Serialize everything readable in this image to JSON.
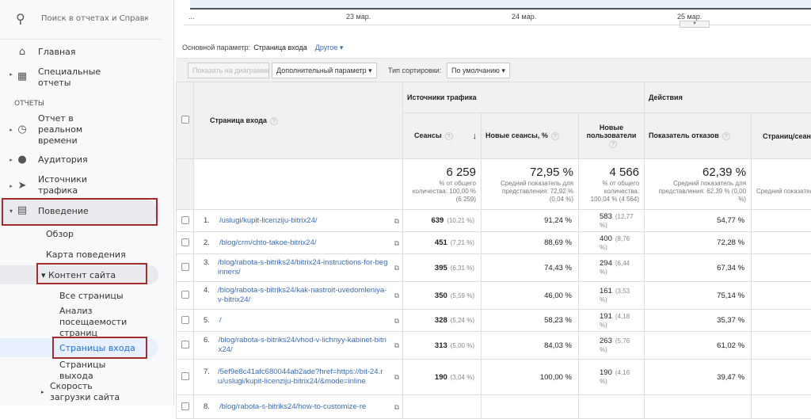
{
  "sidebar": {
    "search_placeholder": "Поиск в отчетах и Справке",
    "home": "Главная",
    "custom": "Специальные отчеты",
    "section": "ОТЧЕТЫ",
    "realtime": "Отчет в реальном времени",
    "audience": "Аудитория",
    "acquisition": "Источники трафика",
    "behavior": "Поведение",
    "overview": "Обзор",
    "flow": "Карта поведения",
    "content": "Контент сайта",
    "all_pages": "Все страницы",
    "drilldown": "Анализ посещаемости страниц",
    "landing": "Страницы входа",
    "exit": "Страницы выхода",
    "speed": "Скорость загрузки сайта"
  },
  "chart": {
    "ticks": [
      "...",
      "23 мар.",
      "24 мар.",
      "25 мар."
    ]
  },
  "dimension": {
    "label": "Основной параметр:",
    "value": "Страница входа",
    "other": "Другое ▾"
  },
  "toolbar": {
    "plot": "Показать на диаграмме",
    "secondary": "Дополнительный параметр ▾",
    "sort_label": "Тип сортировки:",
    "sort": "По умолчанию ▾"
  },
  "table": {
    "groups": {
      "acq": "Источники трафика",
      "beh": "Действия"
    },
    "headers": {
      "page": "Страница входа",
      "sessions": "Сеансы",
      "new_sessions": "Новые сеансы, %",
      "new_users": "Новые пользователи",
      "bounce": "Показатель отказов",
      "pps": "Страниц/сеанс"
    },
    "totals": {
      "sessions": "6 259",
      "sessions_sub": "% от общего количества: 100,00 % (6 259)",
      "new_sessions": "72,95 %",
      "new_sessions_sub": "Средний показатель для представления: 72,92 % (0,04 %)",
      "new_users": "4 566",
      "new_users_sub": "% от общего количества: 100,04 % (4 564)",
      "bounce": "62,39 %",
      "bounce_sub": "Средний показатель для представления: 62,39 % (0,00 %)",
      "pps_sub": "Средний показатель для представления"
    },
    "rows": [
      {
        "n": "1.",
        "page": "/uslugi/kupit-licenziju-bitrix24/",
        "sessions": "639",
        "sessions_pct": "(10,21 %)",
        "new_sessions": "91,24 %",
        "new_users": "583",
        "new_users_pct": "(12,77 %)",
        "bounce": "54,77 %"
      },
      {
        "n": "2.",
        "page": "/blog/crm/chto-takoe-bitrix24/",
        "sessions": "451",
        "sessions_pct": "(7,21 %)",
        "new_sessions": "88,69 %",
        "new_users": "400",
        "new_users_pct": "(8,76 %)",
        "bounce": "72,28 %"
      },
      {
        "n": "3.",
        "page": "/blog/rabota-s-bitriks24/bitrix24-instructions-for-beginners/",
        "sessions": "395",
        "sessions_pct": "(6,31 %)",
        "new_sessions": "74,43 %",
        "new_users": "294",
        "new_users_pct": "(6,44 %)",
        "bounce": "67,34 %"
      },
      {
        "n": "4.",
        "page": "/blog/rabota-s-bitriks24/kak-nastroit-uvedomleniya-v-bitrix24/",
        "sessions": "350",
        "sessions_pct": "(5,59 %)",
        "new_sessions": "46,00 %",
        "new_users": "161",
        "new_users_pct": "(3,53 %)",
        "bounce": "75,14 %"
      },
      {
        "n": "5.",
        "page": "/",
        "sessions": "328",
        "sessions_pct": "(5,24 %)",
        "new_sessions": "58,23 %",
        "new_users": "191",
        "new_users_pct": "(4,18 %)",
        "bounce": "35,37 %"
      },
      {
        "n": "6.",
        "page": "/blog/rabota-s-bitriks24/vhod-v-lichnyy-kabinet-bitrix24/",
        "sessions": "313",
        "sessions_pct": "(5,00 %)",
        "new_sessions": "84,03 %",
        "new_users": "263",
        "new_users_pct": "(5,76 %)",
        "bounce": "61,02 %"
      },
      {
        "n": "7.",
        "page": "/5ef9e8c41afc680044ab2ade?href=https://bit-24.ru/uslugi/kupit-licenziju-bitrix24/&mode=inline",
        "sessions": "190",
        "sessions_pct": "(3,04 %)",
        "new_sessions": "100,00 %",
        "new_users": "190",
        "new_users_pct": "(4,16 %)",
        "bounce": "39,47 %"
      },
      {
        "n": "8.",
        "page": "/blog/rabota-s-bitriks24/how-to-customize-re",
        "sessions": "",
        "sessions_pct": "",
        "new_sessions": "",
        "new_users": "",
        "new_users_pct": "",
        "bounce": ""
      }
    ]
  },
  "colors": {
    "highlight": "#a52a2a",
    "link": "#3b6db4",
    "active": "#1a73e8"
  }
}
